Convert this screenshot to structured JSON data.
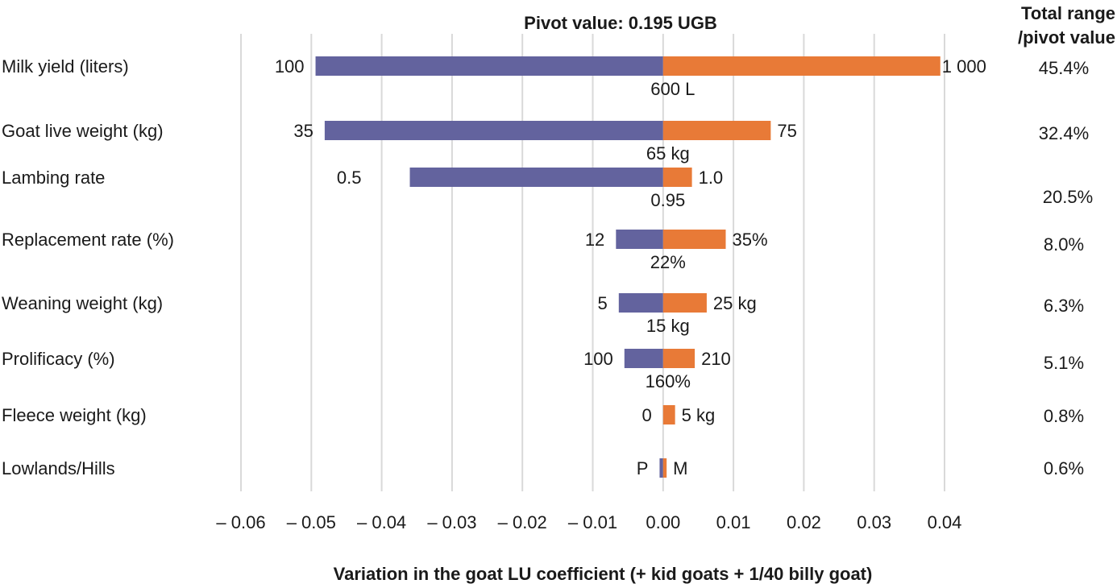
{
  "chart_data": {
    "type": "bar",
    "subtype": "tornado",
    "title": "Pivot value: 0.195 UGB",
    "right_header": [
      "Total range",
      "/pivot value"
    ],
    "xlabel": "Variation in the goat LU coefficient (+ kid goats + 1/40 billy goat)",
    "ylabel": "",
    "xlim": [
      -0.06,
      0.04
    ],
    "xticks": [
      -0.06,
      -0.05,
      -0.04,
      -0.03,
      -0.02,
      -0.01,
      0.0,
      0.01,
      0.02,
      0.03,
      0.04
    ],
    "xtick_labels": [
      "– 0.06",
      "– 0.05",
      "– 0.04",
      "– 0.03",
      "– 0.02",
      "– 0.01",
      "0.00",
      "0.01",
      "0.02",
      "0.03",
      "0.04"
    ],
    "grid": "vertical",
    "colors": {
      "low": "#63639e",
      "high": "#e87a37",
      "grid": "#d9d9d9"
    },
    "categories": [
      "Milk yield (liters)",
      "Goat live weight (kg)",
      "Lambing rate",
      "Replacement rate (%)",
      "Weaning weight (kg)",
      "Prolificacy (%)",
      "Fleece weight (kg)",
      "Lowlands/Hills"
    ],
    "series": [
      {
        "name": "low",
        "values": [
          -0.0494,
          -0.0481,
          -0.036,
          -0.0067,
          -0.0063,
          -0.0055,
          0.0,
          -0.0005
        ]
      },
      {
        "name": "high",
        "values": [
          0.0394,
          0.0153,
          0.0041,
          0.0089,
          0.0062,
          0.0045,
          0.0017,
          0.0005
        ]
      }
    ],
    "low_labels": [
      "100",
      "35",
      "0.5",
      "12",
      "5",
      "100",
      "0",
      "P"
    ],
    "high_labels": [
      "1 000",
      "75",
      "1.0",
      "35%",
      "25 kg",
      "210",
      "5 kg",
      "M"
    ],
    "pivot_labels": [
      "600 L",
      "65 kg",
      "0.95",
      "22%",
      "15 kg",
      "160%",
      "",
      ""
    ],
    "range_pct": [
      "45.4%",
      "32.4%",
      "20.5%",
      "8.0%",
      "6.3%",
      "5.1%",
      "0.8%",
      "0.6%"
    ]
  }
}
